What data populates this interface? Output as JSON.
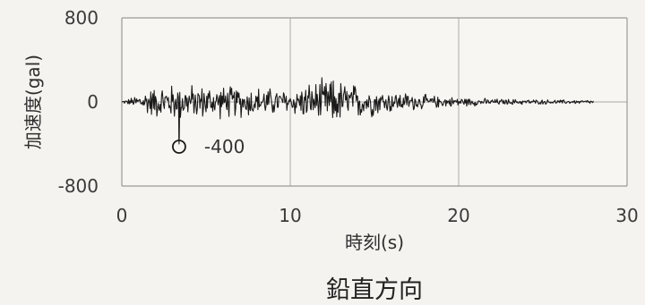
{
  "chart_data": {
    "type": "line",
    "caption": "鉛直方向",
    "xlabel": "時刻(s)",
    "ylabel": "加速度(gal)",
    "xlim": [
      0,
      30
    ],
    "ylim": [
      -800,
      800
    ],
    "xticks": [
      "0",
      "10",
      "20",
      "30"
    ],
    "yticks": [
      "800",
      "0",
      "-800"
    ],
    "grid": true,
    "duration": 28,
    "peak": {
      "x": 3.4,
      "y": -400,
      "label": "-400"
    },
    "envelope": {
      "t": [
        0,
        0.5,
        1.5,
        3,
        5,
        8,
        10,
        11.5,
        12.5,
        14,
        16,
        19,
        22,
        25,
        28
      ],
      "amp": [
        10,
        40,
        150,
        200,
        180,
        170,
        130,
        230,
        260,
        190,
        120,
        60,
        35,
        25,
        20
      ]
    },
    "series": [
      {
        "color": "#1a1a1a"
      }
    ]
  }
}
